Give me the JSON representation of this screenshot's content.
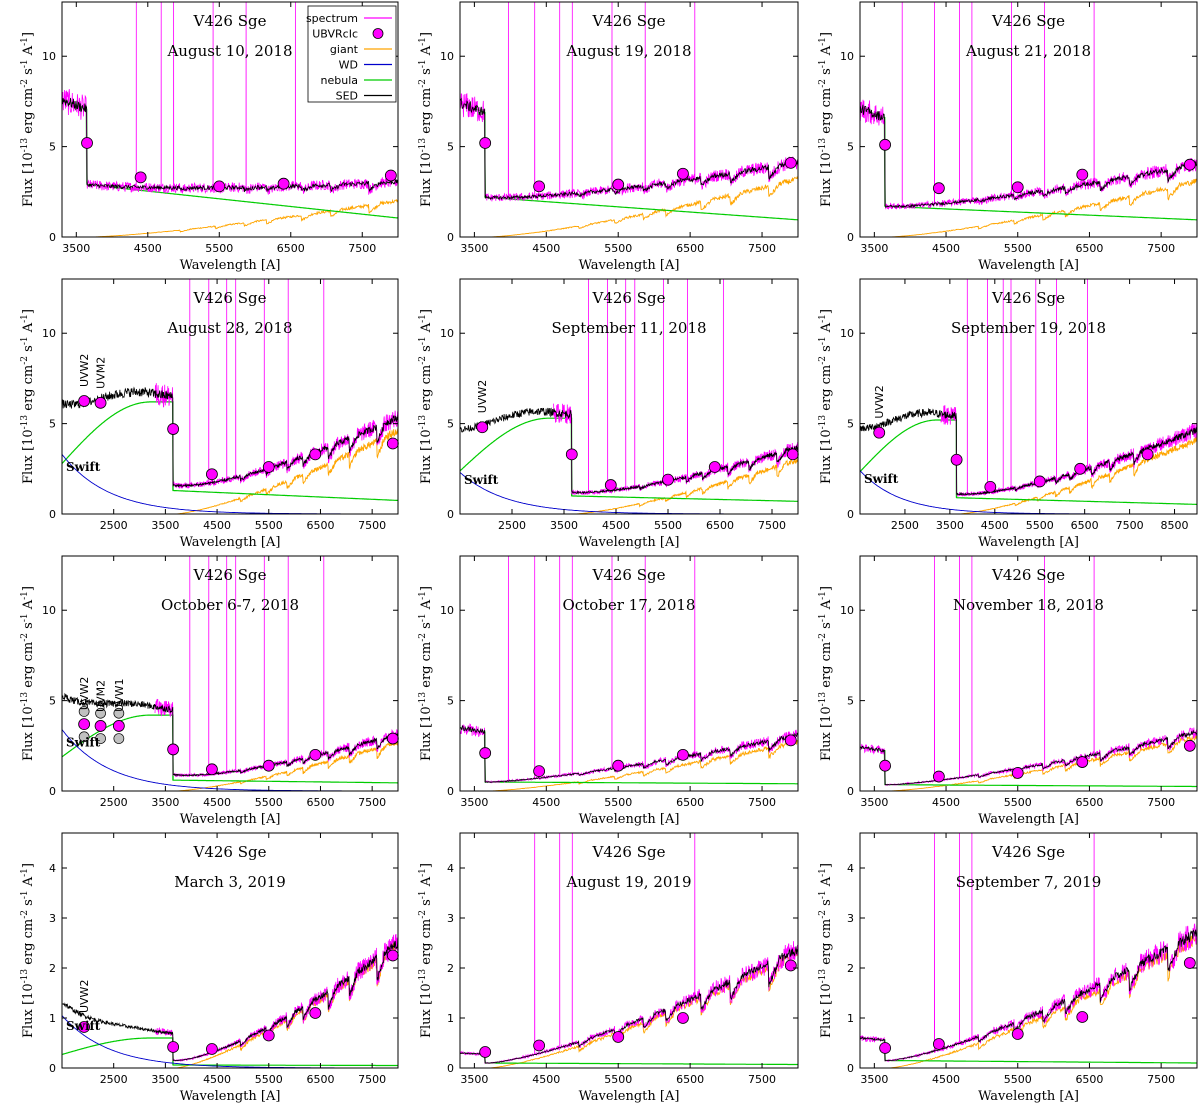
{
  "figure": {
    "star": "V426 Sge",
    "xlabel": "Wavelength [A]",
    "ylabel": "Flux [10^{-13} erg cm^{-2} s^{-1} A^{-1}]",
    "colors": {
      "spectrum": "#ff00ff",
      "ubvri": "#ff00ff",
      "giant": "#ffa500",
      "wd": "#0000cc",
      "nebula": "#00cc00",
      "sed": "#000000",
      "swift_grey": "#c0c0c0"
    },
    "legend": {
      "entries": [
        {
          "label": "spectrum",
          "key": "spectrum",
          "style": "line"
        },
        {
          "label": "UBVRcIc",
          "key": "ubvri",
          "style": "dot"
        },
        {
          "label": "giant",
          "key": "giant",
          "style": "line"
        },
        {
          "label": "WD",
          "key": "wd",
          "style": "line"
        },
        {
          "label": "nebula",
          "key": "nebula",
          "style": "line"
        },
        {
          "label": "SED",
          "key": "sed",
          "style": "line"
        }
      ]
    }
  },
  "chart_data": [
    {
      "type": "line",
      "date": "August 10, 2018",
      "xlim": [
        3300,
        8000
      ],
      "ylim": [
        0,
        13
      ],
      "xticks": [
        3500,
        4500,
        5500,
        6500,
        7500
      ],
      "yticks": [
        0,
        5,
        10
      ],
      "phot": [
        [
          3650,
          5.2
        ],
        [
          4400,
          3.3
        ],
        [
          5500,
          2.8
        ],
        [
          6400,
          2.95
        ],
        [
          7900,
          3.4
        ]
      ],
      "giant_peak": 2.0,
      "neb_blue": 7.6,
      "neb_jump": 2.9,
      "neb_red": 1.05,
      "wd_scale": 0.0,
      "uv": false,
      "swift": [],
      "lines": [
        4340,
        4686,
        4861,
        5411,
        5876,
        6563,
        7065
      ],
      "line_height": 13
    },
    {
      "type": "line",
      "date": "August 19, 2018",
      "xlim": [
        3300,
        8000
      ],
      "ylim": [
        0,
        13
      ],
      "xticks": [
        3500,
        4500,
        5500,
        6500,
        7500
      ],
      "yticks": [
        0,
        5,
        10
      ],
      "phot": [
        [
          3650,
          5.2
        ],
        [
          4400,
          2.8
        ],
        [
          5500,
          2.9
        ],
        [
          6400,
          3.5
        ],
        [
          7900,
          4.1
        ]
      ],
      "giant_peak": 3.2,
      "neb_blue": 7.4,
      "neb_jump": 2.2,
      "neb_red": 0.95,
      "wd_scale": 0.0,
      "uv": false,
      "swift": [],
      "lines": [
        3970,
        4101,
        4340,
        4686,
        4861,
        5411,
        5876,
        6563,
        7065
      ],
      "line_height": 13
    },
    {
      "type": "line",
      "date": "August 21, 2018",
      "xlim": [
        3300,
        8000
      ],
      "ylim": [
        0,
        13
      ],
      "xticks": [
        3500,
        4500,
        5500,
        6500,
        7500
      ],
      "yticks": [
        0,
        5,
        10
      ],
      "phot": [
        [
          3650,
          5.1
        ],
        [
          4400,
          2.7
        ],
        [
          5500,
          2.75
        ],
        [
          6400,
          3.45
        ],
        [
          7900,
          4.0
        ]
      ],
      "giant_peak": 3.1,
      "neb_blue": 7.1,
      "neb_jump": 1.7,
      "neb_red": 0.95,
      "wd_scale": 0.0,
      "uv": false,
      "swift": [],
      "lines": [
        3889,
        4101,
        4340,
        4686,
        4861,
        5411,
        5876,
        6563,
        7065
      ],
      "line_height": 13
    },
    {
      "type": "line",
      "date": "August 28, 2018",
      "xlim": [
        1500,
        8000
      ],
      "ylim": [
        0,
        13
      ],
      "xticks": [
        2500,
        3500,
        4500,
        5500,
        6500,
        7500
      ],
      "yticks": [
        0,
        5,
        10
      ],
      "phot": [
        [
          3650,
          4.7
        ],
        [
          4400,
          2.2
        ],
        [
          5500,
          2.6
        ],
        [
          6400,
          3.3
        ],
        [
          7900,
          3.9
        ]
      ],
      "giant_peak": 4.6,
      "neb_blue": 6.2,
      "neb_jump": 1.3,
      "neb_red": 0.75,
      "wd_scale": 3.3,
      "uv": true,
      "swift": [
        [
          1928,
          6.25,
          "UVW2"
        ],
        [
          2246,
          6.15,
          "UVM2"
        ]
      ],
      "lines": [
        3970,
        4101,
        4340,
        4686,
        4861,
        5411,
        5876,
        6563,
        7065
      ],
      "line_height": 13
    },
    {
      "type": "line",
      "date": "September 11, 2018",
      "xlim": [
        1500,
        8000
      ],
      "ylim": [
        0,
        13
      ],
      "xticks": [
        2500,
        3500,
        4500,
        5500,
        6500,
        7500
      ],
      "yticks": [
        0,
        5,
        10
      ],
      "phot": [
        [
          3650,
          3.3
        ],
        [
          4400,
          1.6
        ],
        [
          5500,
          1.9
        ],
        [
          6400,
          2.6
        ],
        [
          7900,
          3.3
        ]
      ],
      "giant_peak": 3.0,
      "neb_blue": 5.3,
      "neb_jump": 1.0,
      "neb_red": 0.7,
      "wd_scale": 2.3,
      "uv": true,
      "swift": [
        [
          1928,
          4.8,
          "UVW2"
        ]
      ],
      "lines": [
        3970,
        4101,
        4340,
        4686,
        4861,
        5411,
        5876,
        6563,
        7065
      ],
      "line_height": 13
    },
    {
      "type": "line",
      "date": "September 19, 2018",
      "xlim": [
        1500,
        9000
      ],
      "ylim": [
        0,
        13
      ],
      "xticks": [
        2500,
        3500,
        4500,
        5500,
        6500,
        7500,
        8500
      ],
      "yticks": [
        0,
        5,
        10
      ],
      "phot": [
        [
          3650,
          3.0
        ],
        [
          4400,
          1.5
        ],
        [
          5500,
          1.8
        ],
        [
          6400,
          2.5
        ],
        [
          7900,
          3.3
        ]
      ],
      "giant_peak": 3.1,
      "neb_blue": 5.2,
      "neb_jump": 0.9,
      "neb_red": 0.6,
      "wd_scale": 2.4,
      "uv": true,
      "swift": [
        [
          1928,
          4.5,
          "UVW2"
        ]
      ],
      "lines": [
        3889,
        4101,
        4340,
        4686,
        4861,
        5411,
        5876,
        6563,
        7065
      ],
      "line_height": 13
    },
    {
      "type": "line",
      "date": "October 6-7, 2018",
      "xlim": [
        1500,
        8000
      ],
      "ylim": [
        0,
        13
      ],
      "xticks": [
        2500,
        3500,
        4500,
        5500,
        6500,
        7500
      ],
      "yticks": [
        0,
        5,
        10
      ],
      "phot": [
        [
          3650,
          2.3
        ],
        [
          4400,
          1.2
        ],
        [
          5500,
          1.4
        ],
        [
          6400,
          2.0
        ],
        [
          7900,
          2.9
        ]
      ],
      "giant_peak": 2.7,
      "neb_blue": 4.2,
      "neb_jump": 0.6,
      "neb_red": 0.45,
      "wd_scale": 3.4,
      "uv": true,
      "swift": [
        [
          1928,
          3.7,
          "UVW2"
        ],
        [
          2246,
          3.6,
          "UVM2"
        ],
        [
          2600,
          3.6,
          "UVW1"
        ]
      ],
      "lines": [
        3970,
        4101,
        4340,
        4686,
        4861,
        5411,
        5876,
        6563,
        7065
      ],
      "line_height": 13
    },
    {
      "type": "line",
      "date": "October 17, 2018",
      "xlim": [
        3300,
        8000
      ],
      "ylim": [
        0,
        13
      ],
      "xticks": [
        3500,
        4500,
        5500,
        6500,
        7500
      ],
      "yticks": [
        0,
        5,
        10
      ],
      "phot": [
        [
          3650,
          2.1
        ],
        [
          4400,
          1.1
        ],
        [
          5500,
          1.4
        ],
        [
          6400,
          2.0
        ],
        [
          7900,
          2.8
        ]
      ],
      "giant_peak": 2.7,
      "neb_blue": 3.5,
      "neb_jump": 0.5,
      "neb_red": 0.4,
      "wd_scale": 0.0,
      "uv": false,
      "swift": [],
      "lines": [
        3970,
        4101,
        4340,
        4686,
        4861,
        5411,
        5876,
        6563,
        7065
      ],
      "line_height": 13
    },
    {
      "type": "line",
      "date": "November 18, 2018",
      "xlim": [
        3300,
        8000
      ],
      "ylim": [
        0,
        13
      ],
      "xticks": [
        3500,
        4500,
        5500,
        6500,
        7500
      ],
      "yticks": [
        0,
        5,
        10
      ],
      "phot": [
        [
          3650,
          1.4
        ],
        [
          4400,
          0.8
        ],
        [
          5500,
          1.0
        ],
        [
          6400,
          1.6
        ],
        [
          7900,
          2.5
        ]
      ],
      "giant_peak": 3.0,
      "neb_blue": 2.4,
      "neb_jump": 0.35,
      "neb_red": 0.25,
      "wd_scale": 0.0,
      "uv": false,
      "swift": [],
      "lines": [
        4340,
        4686,
        4861,
        5876,
        6563,
        7065
      ],
      "line_height": 13
    },
    {
      "type": "line",
      "date": "March 3, 2019",
      "xlim": [
        1500,
        8000
      ],
      "ylim": [
        0,
        4.7
      ],
      "xticks": [
        2500,
        3500,
        4500,
        5500,
        6500,
        7500
      ],
      "yticks": [
        0,
        1,
        2,
        3,
        4
      ],
      "phot": [
        [
          3650,
          0.42
        ],
        [
          4400,
          0.38
        ],
        [
          5500,
          0.65
        ],
        [
          6400,
          1.1
        ],
        [
          7900,
          2.25
        ]
      ],
      "giant_peak": 2.45,
      "neb_blue": 0.6,
      "neb_jump": 0.06,
      "neb_red": 0.05,
      "wd_scale": 1.05,
      "uv": true,
      "swift": [
        [
          1928,
          0.82,
          "UVW2"
        ]
      ],
      "lines": [],
      "line_height": 0
    },
    {
      "type": "line",
      "date": "August 19, 2019",
      "xlim": [
        3300,
        8000
      ],
      "ylim": [
        0,
        4.7
      ],
      "xticks": [
        3500,
        4500,
        5500,
        6500,
        7500
      ],
      "yticks": [
        0,
        1,
        2,
        3,
        4
      ],
      "phot": [
        [
          3650,
          0.32
        ],
        [
          4400,
          0.45
        ],
        [
          5500,
          0.62
        ],
        [
          6400,
          1.0
        ],
        [
          7900,
          2.05
        ]
      ],
      "giant_peak": 2.3,
      "neb_blue": 0.3,
      "neb_jump": 0.1,
      "neb_red": 0.07,
      "wd_scale": 0.0,
      "uv": false,
      "swift": [],
      "lines": [
        4340,
        4686,
        4861,
        6563
      ],
      "line_height": 4.7
    },
    {
      "type": "line",
      "date": "September 7, 2019",
      "xlim": [
        3300,
        8000
      ],
      "ylim": [
        0,
        4.7
      ],
      "xticks": [
        3500,
        4500,
        5500,
        6500,
        7500
      ],
      "yticks": [
        0,
        1,
        2,
        3,
        4
      ],
      "phot": [
        [
          3650,
          0.4
        ],
        [
          4400,
          0.48
        ],
        [
          5500,
          0.68
        ],
        [
          6400,
          1.02
        ],
        [
          7900,
          2.1
        ]
      ],
      "giant_peak": 2.6,
      "neb_blue": 0.6,
      "neb_jump": 0.15,
      "neb_red": 0.1,
      "wd_scale": 0.0,
      "uv": false,
      "swift": [],
      "lines": [
        4340,
        4686,
        4861,
        6563
      ],
      "line_height": 4.7
    }
  ]
}
